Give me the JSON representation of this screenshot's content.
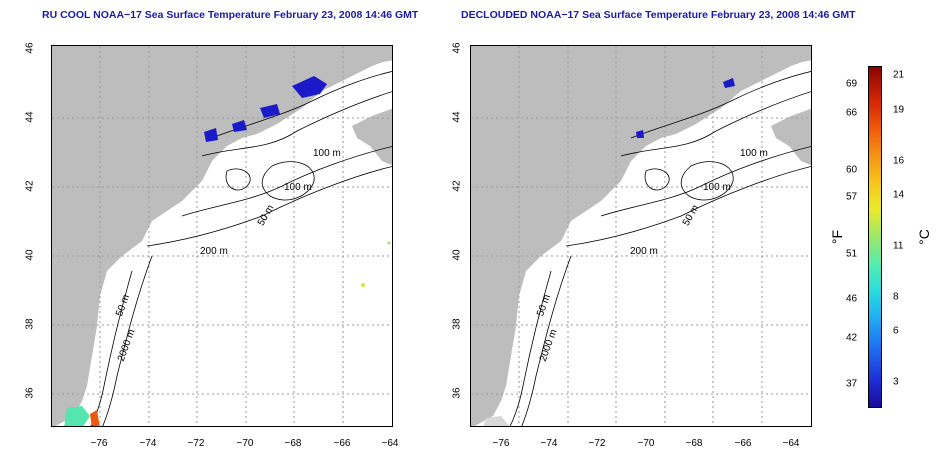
{
  "left_panel": {
    "title": "RU COOL NOAA−17 Sea Surface Temperature February 23, 2008 14:46 GMT"
  },
  "right_panel": {
    "title": "DECLOUDED NOAA−17 Sea Surface Temperature February 23, 2008 14:46 GMT"
  },
  "axes": {
    "lat_ticks": [
      "46",
      "44",
      "42",
      "40",
      "38",
      "36"
    ],
    "lon_ticks": [
      "−76",
      "−74",
      "−72",
      "−70",
      "−68",
      "−66",
      "−64"
    ]
  },
  "contour_labels": [
    "100 m",
    "100 m",
    "50 m",
    "200 m",
    "50 m",
    "2000 m"
  ],
  "colorbar": {
    "fahrenheit_label": "°F",
    "celsius_label": "°C",
    "fahrenheit_ticks": [
      "69",
      "66",
      "60",
      "57",
      "51",
      "46",
      "42",
      "37"
    ],
    "celsius_ticks": [
      "21",
      "19",
      "16",
      "14",
      "11",
      "8",
      "6",
      "3"
    ]
  },
  "colors": {
    "land": "#bdbdbd",
    "title": "#1a1aa6",
    "contour": "#000000",
    "grid": "#9a9a9a"
  }
}
